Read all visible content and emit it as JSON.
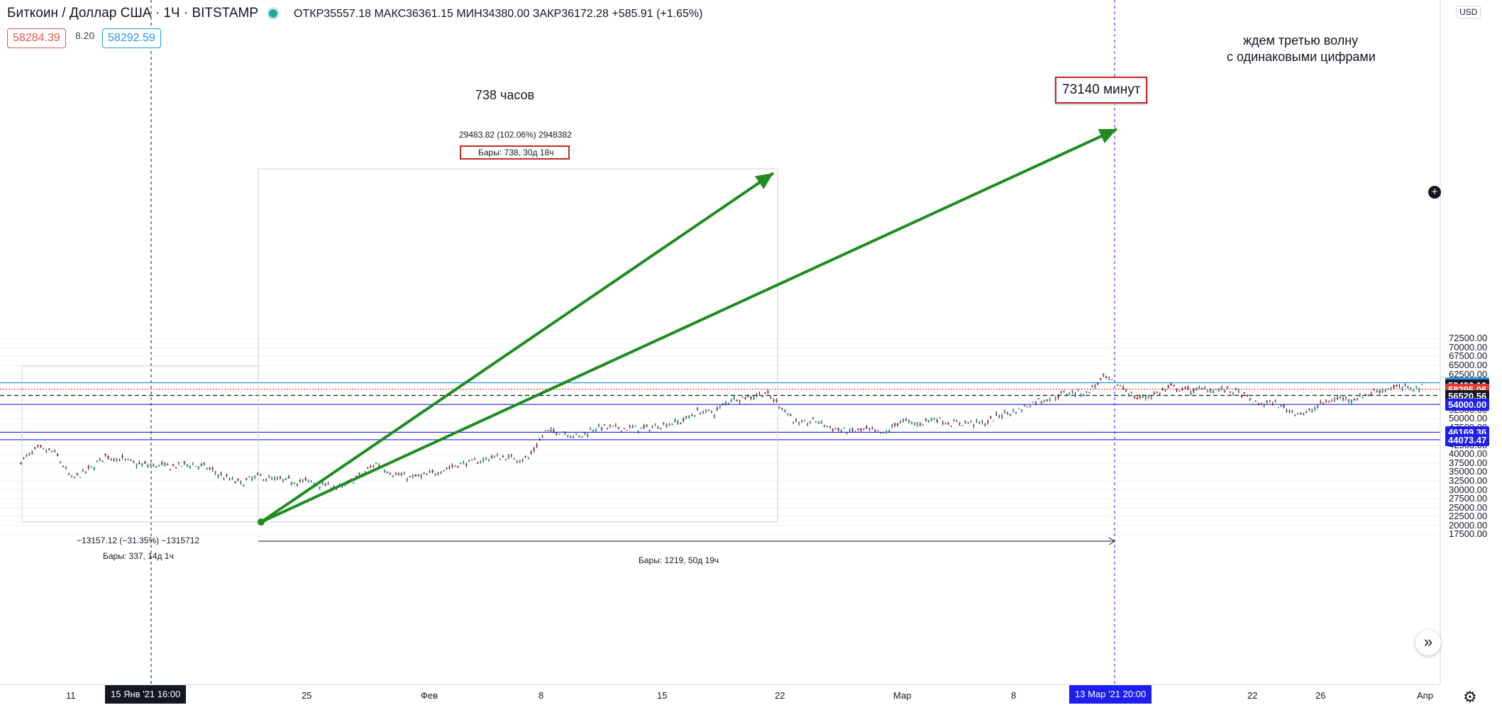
{
  "header": {
    "symbol": "Биткоин / Доллар США · 1Ч · BITSTAMP",
    "ohlc": "ОТКР35557.18 МАКС36361.15 МИН34380.00 ЗАКР36172.28 +585.91 (+1.65%)",
    "bid": "58284.39",
    "spread": "8.20",
    "ask": "58292.59"
  },
  "annotations": {
    "hours_label": "738 часов",
    "minutes_label": "73140 минут",
    "wave_note_line1": "ждем третью волну",
    "wave_note_line2": "с одинаковыми цифрами",
    "measure_top_line1": "29483.82 (102.06%) 2948382",
    "measure_top_line2": "Бары: 738, 30д 18ч",
    "measure_left_line1": "−13157.12 (−31.35%) −1315712",
    "measure_left_line2": "Бары: 337, 14д 1ч",
    "measure_bottom": "Бары: 1219, 50д 19ч"
  },
  "price_axis": {
    "currency": "USD",
    "ticks": [
      "72500.00",
      "70000.00",
      "67500.00",
      "65000.00",
      "62500.00",
      "57500.00",
      "55000.00",
      "52500.00",
      "50000.00",
      "47500.00",
      "45000.00",
      "42500.00",
      "40000.00",
      "37500.00",
      "35000.00",
      "32500.00",
      "30000.00",
      "27500.00",
      "25000.00",
      "22500.00",
      "20000.00",
      "17500.00"
    ],
    "tags": [
      {
        "value": "60110.32",
        "color": "#2196f3"
      },
      {
        "value": "59496.10",
        "color": "#131722"
      },
      {
        "value": "58295.06",
        "color": "#e53935"
      },
      {
        "value": "56520.56",
        "color": "#131722"
      },
      {
        "value": "54000.00",
        "color": "#1e1ef0"
      },
      {
        "value": "46169.36",
        "color": "#1e1ef0"
      },
      {
        "value": "44073.47",
        "color": "#1e1ef0"
      }
    ]
  },
  "time_axis": {
    "ticks": [
      "11",
      "25",
      "Фев",
      "8",
      "15",
      "22",
      "Мар",
      "8",
      "15",
      "22",
      "26",
      "Апр"
    ],
    "crosshair_left": "15 Янв '21   16:00",
    "crosshair_right": "13 Мар '21   20:00"
  },
  "chart_data": {
    "type": "line",
    "title": "",
    "xlabel": "",
    "ylabel": "",
    "ylim": [
      15000,
      73000
    ],
    "horizontal_levels": [
      60110.32,
      54000.0,
      46169.36,
      44073.47,
      56520.56,
      58295.06
    ],
    "series": [
      {
        "x": [
          "2021-01-08",
          "2021-01-09",
          "2021-01-10",
          "2021-01-11",
          "2021-01-12",
          "2021-01-13",
          "2021-01-14",
          "2021-01-15",
          "2021-01-16",
          "2021-01-17",
          "2021-01-18",
          "2021-01-19",
          "2021-01-20",
          "2021-01-21",
          "2021-01-22",
          "2021-01-23",
          "2021-01-24",
          "2021-01-25",
          "2021-01-26",
          "2021-01-27",
          "2021-01-28",
          "2021-01-29",
          "2021-01-30",
          "2021-01-31",
          "2021-02-01",
          "2021-02-02",
          "2021-02-03",
          "2021-02-04",
          "2021-02-05",
          "2021-02-06",
          "2021-02-07",
          "2021-02-08",
          "2021-02-09",
          "2021-02-10",
          "2021-02-11",
          "2021-02-12",
          "2021-02-13",
          "2021-02-14",
          "2021-02-15",
          "2021-02-16",
          "2021-02-17",
          "2021-02-18",
          "2021-02-19",
          "2021-02-20",
          "2021-02-21",
          "2021-02-22",
          "2021-02-23",
          "2021-02-24",
          "2021-02-25",
          "2021-02-26",
          "2021-02-27",
          "2021-02-28",
          "2021-03-01",
          "2021-03-02",
          "2021-03-03",
          "2021-03-04",
          "2021-03-05",
          "2021-03-06",
          "2021-03-07",
          "2021-03-08",
          "2021-03-09",
          "2021-03-10",
          "2021-03-11",
          "2021-03-12",
          "2021-03-13",
          "2021-03-14",
          "2021-03-15",
          "2021-03-16",
          "2021-03-17",
          "2021-03-18",
          "2021-03-19",
          "2021-03-20",
          "2021-03-21",
          "2021-03-22",
          "2021-03-23",
          "2021-03-24",
          "2021-03-25",
          "2021-03-26",
          "2021-03-27",
          "2021-03-28",
          "2021-03-29",
          "2021-03-30",
          "2021-03-31",
          "2021-04-01"
        ],
        "values": [
          38000,
          41500,
          40500,
          33000,
          35500,
          39500,
          38500,
          37000,
          36800,
          36500,
          37200,
          36200,
          33500,
          31800,
          33800,
          32800,
          32500,
          32300,
          31200,
          30600,
          33800,
          37500,
          34500,
          33400,
          34000,
          35800,
          37300,
          38000,
          39300,
          38900,
          38800,
          46300,
          46400,
          44800,
          47600,
          47400,
          47300,
          47200,
          48400,
          49100,
          52000,
          51700,
          55600,
          56000,
          57200,
          53200,
          48200,
          49500,
          47200,
          46300,
          46800,
          45600,
          49400,
          48400,
          50200,
          48600,
          48900,
          48700,
          51300,
          52400,
          54900,
          56000,
          57500,
          57200,
          61500,
          59300,
          55600,
          56800,
          58800,
          57900,
          58300,
          58200,
          57400,
          54100,
          54500,
          52300,
          51300,
          54500,
          55800,
          55700,
          57600,
          58700,
          58600,
          59000
        ]
      }
    ]
  }
}
